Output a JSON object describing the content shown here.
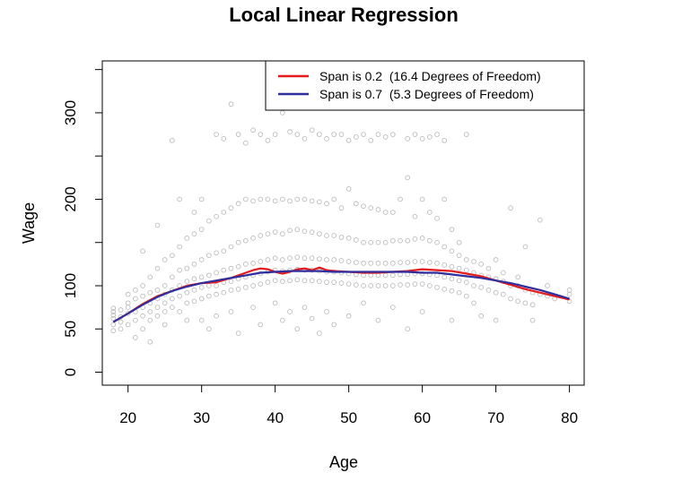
{
  "chart_data": {
    "type": "scatter",
    "title": "Local Linear Regression",
    "xlabel": "Age",
    "ylabel": "Wage",
    "xlim": [
      16.5,
      82
    ],
    "ylim": [
      -15,
      360
    ],
    "xticks": [
      20,
      30,
      40,
      50,
      60,
      70,
      80
    ],
    "yticks": [
      0,
      50,
      100,
      200,
      300
    ],
    "minor_yticks": [
      150,
      250,
      350
    ],
    "grid": false,
    "legend_position": "top-right",
    "colors": {
      "points": "#bdbdbd",
      "span_02": "#e41a1c",
      "span_07": "#2e2e9e"
    },
    "legend": [
      {
        "label": "Span is 0.2  (16.4 Degrees of Freedom)",
        "color": "#e41a1c"
      },
      {
        "label": "Span is 0.7  (5.3 Degrees of Freedom)",
        "color": "#2e2e9e"
      }
    ],
    "series": [
      {
        "name": "Span is 0.2  (16.4 Degrees of Freedom)",
        "type": "line",
        "color": "#e41a1c",
        "x": [
          18,
          20,
          22,
          24,
          26,
          28,
          30,
          32,
          34,
          36,
          37,
          38,
          39,
          40,
          41,
          42,
          43,
          44,
          45,
          46,
          47,
          48,
          50,
          52,
          54,
          56,
          58,
          60,
          62,
          64,
          66,
          68,
          70,
          72,
          74,
          76,
          78,
          80
        ],
        "y": [
          58,
          68,
          79,
          88,
          94,
          100,
          103,
          104,
          109,
          115,
          118,
          120,
          119,
          116,
          114,
          116,
          119,
          120,
          118,
          121,
          118,
          117,
          116,
          115,
          115,
          116,
          117,
          119,
          118,
          117,
          114,
          111,
          106,
          101,
          96,
          92,
          88,
          84
        ]
      },
      {
        "name": "Span is 0.7  (5.3 Degrees of Freedom)",
        "type": "line",
        "color": "#2e2e9e",
        "x": [
          18,
          20,
          22,
          24,
          26,
          28,
          30,
          32,
          34,
          36,
          38,
          40,
          42,
          44,
          46,
          48,
          50,
          52,
          54,
          56,
          58,
          60,
          62,
          64,
          66,
          68,
          70,
          72,
          74,
          76,
          78,
          80
        ],
        "y": [
          58,
          68,
          78,
          87,
          94,
          99,
          103,
          106,
          109,
          112,
          115,
          116,
          117,
          117,
          117,
          116,
          116,
          116,
          116,
          116,
          116,
          115,
          115,
          113,
          111,
          109,
          106,
          103,
          99,
          95,
          90,
          85
        ]
      }
    ],
    "points": [
      [
        18,
        70
      ],
      [
        18,
        62
      ],
      [
        18,
        55
      ],
      [
        18,
        48
      ],
      [
        18,
        74
      ],
      [
        18,
        66
      ],
      [
        19,
        58
      ],
      [
        19,
        72
      ],
      [
        19,
        50
      ],
      [
        19,
        64
      ],
      [
        20,
        68
      ],
      [
        20,
        80
      ],
      [
        20,
        55
      ],
      [
        20,
        75
      ],
      [
        20,
        90
      ],
      [
        21,
        40
      ],
      [
        21,
        70
      ],
      [
        21,
        85
      ],
      [
        21,
        60
      ],
      [
        21,
        95
      ],
      [
        22,
        75
      ],
      [
        22,
        65
      ],
      [
        22,
        88
      ],
      [
        22,
        100
      ],
      [
        22,
        140
      ],
      [
        22,
        50
      ],
      [
        23,
        80
      ],
      [
        23,
        70
      ],
      [
        23,
        92
      ],
      [
        23,
        110
      ],
      [
        23,
        60
      ],
      [
        23,
        35
      ],
      [
        24,
        85
      ],
      [
        24,
        75
      ],
      [
        24,
        95
      ],
      [
        24,
        120
      ],
      [
        24,
        65
      ],
      [
        24,
        170
      ],
      [
        25,
        90
      ],
      [
        25,
        80
      ],
      [
        25,
        100
      ],
      [
        25,
        130
      ],
      [
        25,
        70
      ],
      [
        25,
        55
      ],
      [
        26,
        95
      ],
      [
        26,
        85
      ],
      [
        26,
        110
      ],
      [
        26,
        135
      ],
      [
        26,
        75
      ],
      [
        26,
        268
      ],
      [
        27,
        100
      ],
      [
        27,
        88
      ],
      [
        27,
        118
      ],
      [
        27,
        145
      ],
      [
        27,
        70
      ],
      [
        27,
        200
      ],
      [
        28,
        105
      ],
      [
        28,
        92
      ],
      [
        28,
        120
      ],
      [
        28,
        155
      ],
      [
        28,
        80
      ],
      [
        28,
        60
      ],
      [
        29,
        108
      ],
      [
        29,
        95
      ],
      [
        29,
        125
      ],
      [
        29,
        160
      ],
      [
        29,
        82
      ],
      [
        29,
        185
      ],
      [
        30,
        110
      ],
      [
        30,
        98
      ],
      [
        30,
        130
      ],
      [
        30,
        165
      ],
      [
        30,
        85
      ],
      [
        30,
        200
      ],
      [
        30,
        60
      ],
      [
        31,
        112
      ],
      [
        31,
        100
      ],
      [
        31,
        135
      ],
      [
        31,
        175
      ],
      [
        31,
        88
      ],
      [
        31,
        50
      ],
      [
        32,
        115
      ],
      [
        32,
        100
      ],
      [
        32,
        138
      ],
      [
        32,
        180
      ],
      [
        32,
        90
      ],
      [
        32,
        275
      ],
      [
        32,
        65
      ],
      [
        33,
        118
      ],
      [
        33,
        104
      ],
      [
        33,
        140
      ],
      [
        33,
        185
      ],
      [
        33,
        92
      ],
      [
        33,
        270
      ],
      [
        34,
        120
      ],
      [
        34,
        105
      ],
      [
        34,
        145
      ],
      [
        34,
        190
      ],
      [
        34,
        95
      ],
      [
        34,
        310
      ],
      [
        34,
        70
      ],
      [
        35,
        122
      ],
      [
        35,
        108
      ],
      [
        35,
        150
      ],
      [
        35,
        195
      ],
      [
        35,
        96
      ],
      [
        35,
        275
      ],
      [
        35,
        45
      ],
      [
        36,
        125
      ],
      [
        36,
        110
      ],
      [
        36,
        152
      ],
      [
        36,
        200
      ],
      [
        36,
        98
      ],
      [
        36,
        265
      ],
      [
        37,
        126
      ],
      [
        37,
        112
      ],
      [
        37,
        155
      ],
      [
        37,
        198
      ],
      [
        37,
        100
      ],
      [
        37,
        280
      ],
      [
        37,
        75
      ],
      [
        38,
        128
      ],
      [
        38,
        114
      ],
      [
        38,
        158
      ],
      [
        38,
        200
      ],
      [
        38,
        102
      ],
      [
        38,
        275
      ],
      [
        38,
        55
      ],
      [
        39,
        130
      ],
      [
        39,
        116
      ],
      [
        39,
        160
      ],
      [
        39,
        200
      ],
      [
        39,
        104
      ],
      [
        39,
        312
      ],
      [
        39,
        268
      ],
      [
        40,
        132
      ],
      [
        40,
        118
      ],
      [
        40,
        162
      ],
      [
        40,
        198
      ],
      [
        40,
        106
      ],
      [
        40,
        275
      ],
      [
        40,
        80
      ],
      [
        41,
        130
      ],
      [
        41,
        117
      ],
      [
        41,
        160
      ],
      [
        41,
        200
      ],
      [
        41,
        105
      ],
      [
        41,
        300
      ],
      [
        41,
        60
      ],
      [
        42,
        132
      ],
      [
        42,
        118
      ],
      [
        42,
        164
      ],
      [
        42,
        198
      ],
      [
        42,
        106
      ],
      [
        42,
        278
      ],
      [
        42,
        70
      ],
      [
        43,
        133
      ],
      [
        43,
        119
      ],
      [
        43,
        165
      ],
      [
        43,
        200
      ],
      [
        43,
        107
      ],
      [
        43,
        275
      ],
      [
        43,
        50
      ],
      [
        44,
        132
      ],
      [
        44,
        118
      ],
      [
        44,
        163
      ],
      [
        44,
        200
      ],
      [
        44,
        106
      ],
      [
        44,
        270
      ],
      [
        44,
        75
      ],
      [
        45,
        132
      ],
      [
        45,
        118
      ],
      [
        45,
        162
      ],
      [
        45,
        198
      ],
      [
        45,
        106
      ],
      [
        45,
        280
      ],
      [
        45,
        62
      ],
      [
        46,
        131
      ],
      [
        46,
        117
      ],
      [
        46,
        160
      ],
      [
        46,
        197
      ],
      [
        46,
        105
      ],
      [
        46,
        275
      ],
      [
        46,
        45
      ],
      [
        47,
        130
      ],
      [
        47,
        116
      ],
      [
        47,
        158
      ],
      [
        47,
        195
      ],
      [
        47,
        104
      ],
      [
        47,
        270
      ],
      [
        47,
        70
      ],
      [
        48,
        130
      ],
      [
        48,
        116
      ],
      [
        48,
        158
      ],
      [
        48,
        200
      ],
      [
        48,
        104
      ],
      [
        48,
        275
      ],
      [
        48,
        55
      ],
      [
        49,
        129
      ],
      [
        49,
        115
      ],
      [
        49,
        156
      ],
      [
        49,
        190
      ],
      [
        49,
        103
      ],
      [
        49,
        275
      ],
      [
        50,
        128
      ],
      [
        50,
        114
      ],
      [
        50,
        155
      ],
      [
        50,
        212
      ],
      [
        50,
        102
      ],
      [
        50,
        268
      ],
      [
        50,
        65
      ],
      [
        51,
        127
      ],
      [
        51,
        113
      ],
      [
        51,
        153
      ],
      [
        51,
        195
      ],
      [
        51,
        101
      ],
      [
        51,
        272
      ],
      [
        52,
        126
      ],
      [
        52,
        112
      ],
      [
        52,
        150
      ],
      [
        52,
        192
      ],
      [
        52,
        100
      ],
      [
        52,
        275
      ],
      [
        52,
        80
      ],
      [
        53,
        126
      ],
      [
        53,
        112
      ],
      [
        53,
        150
      ],
      [
        53,
        190
      ],
      [
        53,
        100
      ],
      [
        53,
        268
      ],
      [
        54,
        126
      ],
      [
        54,
        112
      ],
      [
        54,
        150
      ],
      [
        54,
        188
      ],
      [
        54,
        100
      ],
      [
        54,
        275
      ],
      [
        54,
        60
      ],
      [
        55,
        126
      ],
      [
        55,
        112
      ],
      [
        55,
        150
      ],
      [
        55,
        185
      ],
      [
        55,
        100
      ],
      [
        55,
        272
      ],
      [
        56,
        126
      ],
      [
        56,
        112
      ],
      [
        56,
        152
      ],
      [
        56,
        185
      ],
      [
        56,
        100
      ],
      [
        56,
        275
      ],
      [
        56,
        75
      ],
      [
        57,
        127
      ],
      [
        57,
        113
      ],
      [
        57,
        152
      ],
      [
        57,
        200
      ],
      [
        57,
        101
      ],
      [
        57,
        310
      ],
      [
        58,
        127
      ],
      [
        58,
        113
      ],
      [
        58,
        152
      ],
      [
        58,
        225
      ],
      [
        58,
        101
      ],
      [
        58,
        270
      ],
      [
        58,
        50
      ],
      [
        59,
        128
      ],
      [
        59,
        114
      ],
      [
        59,
        154
      ],
      [
        59,
        180
      ],
      [
        59,
        102
      ],
      [
        59,
        275
      ],
      [
        60,
        128
      ],
      [
        60,
        114
      ],
      [
        60,
        155
      ],
      [
        60,
        200
      ],
      [
        60,
        102
      ],
      [
        60,
        270
      ],
      [
        60,
        70
      ],
      [
        61,
        127
      ],
      [
        61,
        113
      ],
      [
        61,
        152
      ],
      [
        61,
        185
      ],
      [
        61,
        100
      ],
      [
        61,
        272
      ],
      [
        62,
        126
      ],
      [
        62,
        112
      ],
      [
        62,
        150
      ],
      [
        62,
        178
      ],
      [
        62,
        98
      ],
      [
        62,
        275
      ],
      [
        63,
        124
      ],
      [
        63,
        110
      ],
      [
        63,
        145
      ],
      [
        63,
        200
      ],
      [
        63,
        96
      ],
      [
        63,
        268
      ],
      [
        64,
        122
      ],
      [
        64,
        108
      ],
      [
        64,
        140
      ],
      [
        64,
        165
      ],
      [
        64,
        94
      ],
      [
        64,
        60
      ],
      [
        65,
        120
      ],
      [
        65,
        106
      ],
      [
        65,
        135
      ],
      [
        65,
        150
      ],
      [
        65,
        92
      ],
      [
        66,
        118
      ],
      [
        66,
        104
      ],
      [
        66,
        130
      ],
      [
        66,
        275
      ],
      [
        66,
        88
      ],
      [
        67,
        115
      ],
      [
        67,
        100
      ],
      [
        67,
        128
      ],
      [
        67,
        80
      ],
      [
        68,
        112
      ],
      [
        68,
        98
      ],
      [
        68,
        125
      ],
      [
        68,
        65
      ],
      [
        69,
        110
      ],
      [
        69,
        95
      ],
      [
        69,
        120
      ],
      [
        70,
        108
      ],
      [
        70,
        92
      ],
      [
        70,
        130
      ],
      [
        70,
        60
      ],
      [
        71,
        105
      ],
      [
        71,
        90
      ],
      [
        71,
        115
      ],
      [
        72,
        100
      ],
      [
        72,
        85
      ],
      [
        72,
        190
      ],
      [
        73,
        100
      ],
      [
        73,
        82
      ],
      [
        73,
        110
      ],
      [
        74,
        95
      ],
      [
        74,
        80
      ],
      [
        74,
        145
      ],
      [
        75,
        92
      ],
      [
        75,
        78
      ],
      [
        75,
        60
      ],
      [
        76,
        90
      ],
      [
        76,
        176
      ],
      [
        77,
        88
      ],
      [
        77,
        100
      ],
      [
        78,
        85
      ],
      [
        80,
        90
      ],
      [
        80,
        82
      ],
      [
        80,
        95
      ]
    ]
  }
}
